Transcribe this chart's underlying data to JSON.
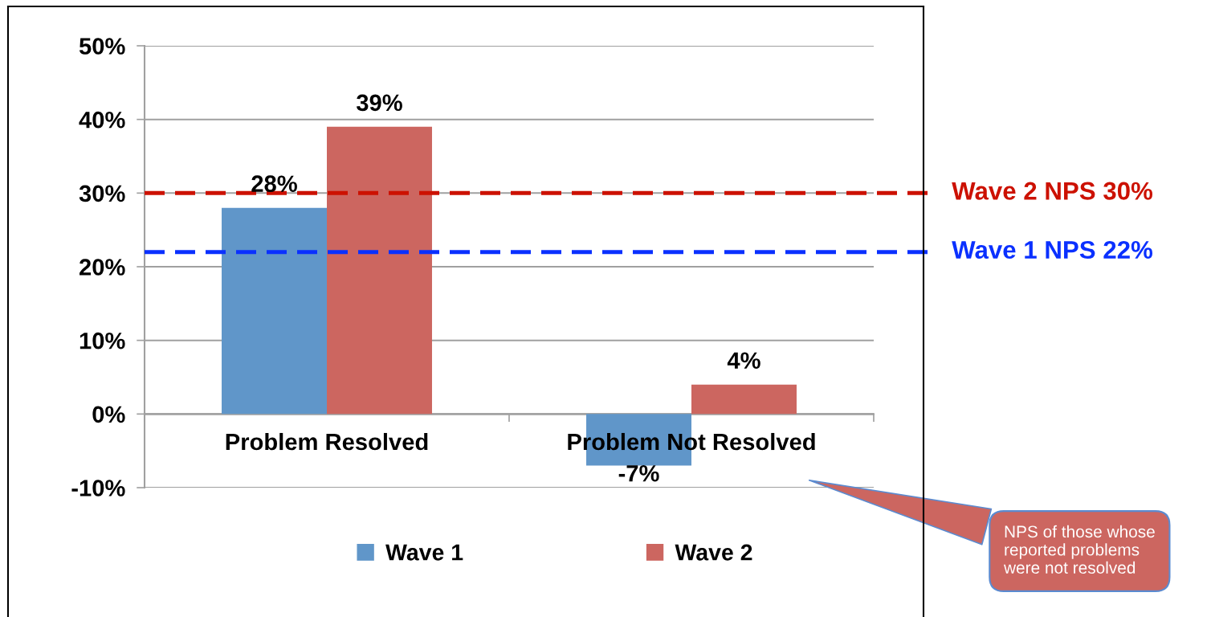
{
  "chart_data": {
    "type": "bar",
    "categories": [
      "Problem Resolved",
      "Problem Not Resolved"
    ],
    "series": [
      {
        "name": "Wave 1",
        "color": "#6096c9",
        "values": [
          28,
          -7
        ],
        "value_labels": [
          "28%",
          "-7%"
        ]
      },
      {
        "name": "Wave 2",
        "color": "#cc6660",
        "values": [
          39,
          4
        ],
        "value_labels": [
          "39%",
          "4%"
        ]
      }
    ],
    "ylim": [
      -10,
      50
    ],
    "yticks": [
      {
        "value": -10,
        "label": "-10%"
      },
      {
        "value": 0,
        "label": "0%"
      },
      {
        "value": 10,
        "label": "10%"
      },
      {
        "value": 20,
        "label": "20%"
      },
      {
        "value": 30,
        "label": "30%"
      },
      {
        "value": 40,
        "label": "40%"
      },
      {
        "value": 50,
        "label": "50%"
      }
    ],
    "grid": "y",
    "legend": "bottom",
    "ref_lines": [
      {
        "axis": "y",
        "value": 30,
        "label": "Wave 2 NPS 30%",
        "color": "#cc1100",
        "line_style": "dashed"
      },
      {
        "axis": "y",
        "value": 22,
        "label": "Wave 1 NPS 22%",
        "color": "#0a30ff",
        "line_style": "dashed"
      }
    ],
    "annotations": [
      "NPS of those whose\nreported problems\nwere not resolved"
    ]
  }
}
